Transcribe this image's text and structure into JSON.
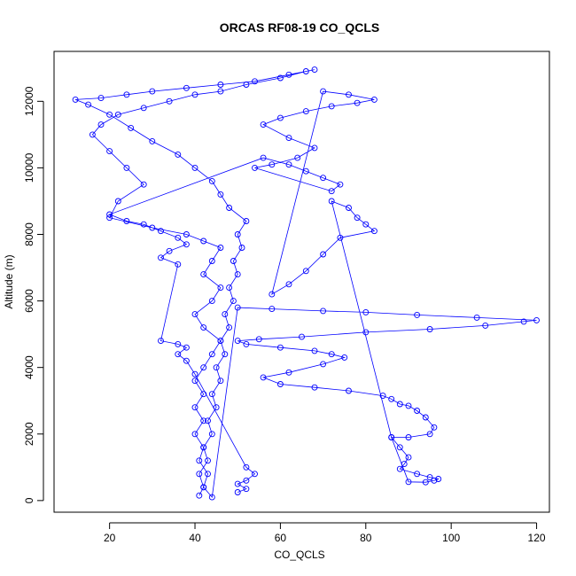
{
  "chart_data": {
    "type": "scatter",
    "title": "ORCAS RF08-19 CO_QCLS",
    "xlabel": "CO_QCLS",
    "ylabel": "Altitude (m)",
    "xlim": [
      7,
      123
    ],
    "ylim": [
      -350,
      13500
    ],
    "x_ticks": [
      20,
      40,
      60,
      80,
      100,
      120
    ],
    "y_ticks": [
      0,
      2000,
      4000,
      6000,
      8000,
      10000,
      12000
    ],
    "x_tick_labels": [
      "20",
      "40",
      "60",
      "80",
      "100",
      "120"
    ],
    "y_tick_labels": [
      "0",
      "2000",
      "4000",
      "6000",
      "8000",
      "10000",
      "12000"
    ],
    "marker": "open-circle",
    "connected": true,
    "color": "#0000ff",
    "legend": "none",
    "grid": false,
    "series": [
      {
        "points": [
          [
            41,
            150
          ],
          [
            42,
            400
          ],
          [
            41,
            800
          ],
          [
            43,
            1200
          ],
          [
            42,
            1600
          ],
          [
            44,
            2000
          ],
          [
            43,
            2400
          ],
          [
            45,
            2800
          ],
          [
            44,
            3200
          ],
          [
            46,
            3600
          ],
          [
            45,
            4000
          ],
          [
            47,
            4400
          ],
          [
            46,
            4800
          ],
          [
            48,
            5200
          ],
          [
            47,
            5600
          ],
          [
            49,
            6000
          ],
          [
            48,
            6400
          ],
          [
            50,
            6800
          ],
          [
            49,
            7200
          ],
          [
            51,
            7600
          ],
          [
            50,
            8000
          ],
          [
            52,
            8400
          ],
          [
            48,
            8800
          ],
          [
            46,
            9200
          ],
          [
            44,
            9600
          ],
          [
            40,
            10000
          ],
          [
            36,
            10400
          ],
          [
            30,
            10800
          ],
          [
            25,
            11200
          ],
          [
            20,
            11600
          ],
          [
            15,
            11900
          ],
          [
            12,
            12050
          ],
          [
            18,
            12100
          ],
          [
            24,
            12200
          ],
          [
            30,
            12300
          ],
          [
            38,
            12400
          ],
          [
            46,
            12500
          ],
          [
            54,
            12600
          ],
          [
            62,
            12800
          ],
          [
            68,
            12950
          ],
          [
            66,
            12900
          ],
          [
            60,
            12700
          ],
          [
            52,
            12500
          ],
          [
            46,
            12300
          ],
          [
            40,
            12200
          ],
          [
            34,
            12000
          ],
          [
            28,
            11800
          ],
          [
            22,
            11600
          ],
          [
            18,
            11300
          ],
          [
            16,
            11000
          ],
          [
            20,
            10500
          ],
          [
            24,
            10000
          ],
          [
            28,
            9500
          ],
          [
            22,
            9000
          ],
          [
            20,
            8500
          ],
          [
            30,
            8200
          ],
          [
            38,
            8000
          ],
          [
            42,
            7800
          ],
          [
            46,
            7600
          ],
          [
            44,
            7200
          ],
          [
            42,
            6800
          ],
          [
            46,
            6400
          ],
          [
            44,
            6000
          ],
          [
            40,
            5600
          ],
          [
            42,
            5200
          ],
          [
            46,
            4800
          ],
          [
            44,
            4400
          ],
          [
            42,
            4000
          ],
          [
            40,
            3600
          ],
          [
            42,
            3200
          ],
          [
            40,
            2800
          ],
          [
            42,
            2400
          ],
          [
            40,
            2000
          ],
          [
            42,
            1600
          ],
          [
            41,
            1200
          ],
          [
            43,
            800
          ],
          [
            42,
            400
          ],
          [
            44,
            100
          ],
          [
            50,
            5800
          ],
          [
            58,
            5760
          ],
          [
            70,
            5700
          ],
          [
            80,
            5660
          ],
          [
            92,
            5580
          ],
          [
            106,
            5500
          ],
          [
            120,
            5420
          ],
          [
            117,
            5380
          ],
          [
            108,
            5260
          ],
          [
            95,
            5150
          ],
          [
            80,
            5060
          ],
          [
            65,
            4920
          ],
          [
            55,
            4850
          ],
          [
            50,
            4800
          ],
          [
            52,
            4700
          ],
          [
            60,
            4600
          ],
          [
            68,
            4500
          ],
          [
            72,
            4400
          ],
          [
            75,
            4300
          ],
          [
            70,
            4100
          ],
          [
            62,
            3850
          ],
          [
            56,
            3700
          ],
          [
            60,
            3500
          ],
          [
            68,
            3400
          ],
          [
            76,
            3300
          ],
          [
            84,
            3150
          ],
          [
            86,
            3050
          ],
          [
            88,
            2900
          ],
          [
            90,
            2850
          ],
          [
            92,
            2700
          ],
          [
            94,
            2500
          ],
          [
            96,
            2200
          ],
          [
            95,
            2000
          ],
          [
            90,
            1900
          ],
          [
            86,
            1900
          ],
          [
            88,
            1600
          ],
          [
            90,
            1300
          ],
          [
            89,
            1100
          ],
          [
            88,
            950
          ],
          [
            92,
            800
          ],
          [
            95,
            700
          ],
          [
            97,
            650
          ],
          [
            96,
            600
          ],
          [
            94,
            550
          ],
          [
            90,
            560
          ],
          [
            86,
            1900
          ],
          [
            72,
            9000
          ],
          [
            76,
            8800
          ],
          [
            78,
            8500
          ],
          [
            80,
            8300
          ],
          [
            82,
            8100
          ],
          [
            74,
            7900
          ],
          [
            70,
            7400
          ],
          [
            66,
            6900
          ],
          [
            62,
            6500
          ],
          [
            58,
            6200
          ],
          [
            70,
            12300
          ],
          [
            76,
            12200
          ],
          [
            82,
            12050
          ],
          [
            78,
            11950
          ],
          [
            72,
            11850
          ],
          [
            66,
            11700
          ],
          [
            60,
            11500
          ],
          [
            56,
            11300
          ],
          [
            62,
            10900
          ],
          [
            68,
            10600
          ],
          [
            64,
            10300
          ],
          [
            58,
            10100
          ],
          [
            54,
            10000
          ],
          [
            72,
            9300
          ],
          [
            74,
            9500
          ],
          [
            70,
            9700
          ],
          [
            66,
            9900
          ],
          [
            62,
            10100
          ],
          [
            56,
            10300
          ],
          [
            20,
            8600
          ],
          [
            24,
            8400
          ],
          [
            28,
            8300
          ],
          [
            32,
            8100
          ],
          [
            36,
            7900
          ],
          [
            38,
            7700
          ],
          [
            34,
            7500
          ],
          [
            32,
            7300
          ],
          [
            36,
            7100
          ],
          [
            32,
            4800
          ],
          [
            36,
            4700
          ],
          [
            38,
            4600
          ],
          [
            36,
            4400
          ],
          [
            38,
            4200
          ],
          [
            40,
            3800
          ],
          [
            52,
            1000
          ],
          [
            54,
            800
          ],
          [
            52,
            600
          ],
          [
            50,
            500
          ],
          [
            52,
            350
          ],
          [
            50,
            250
          ]
        ]
      }
    ]
  }
}
